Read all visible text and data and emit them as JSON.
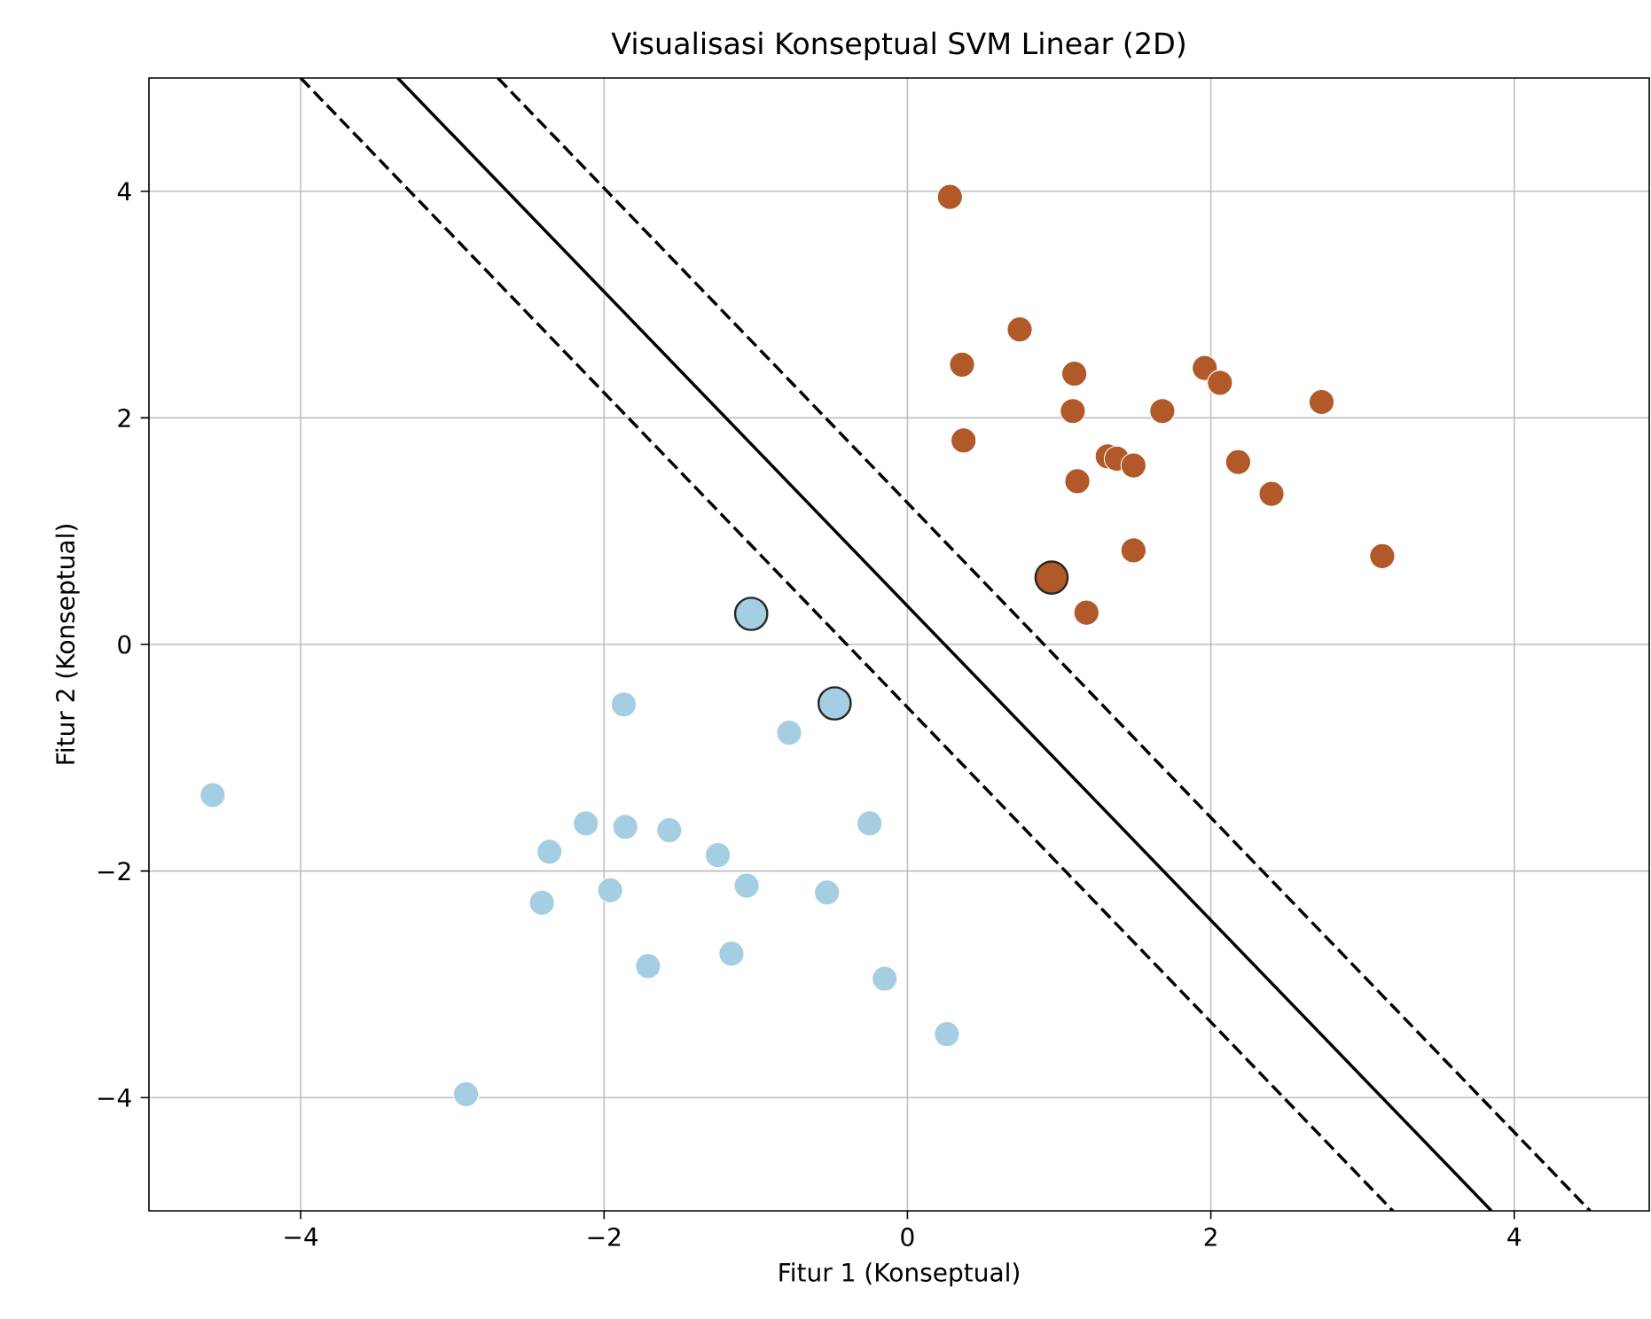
{
  "chart_data": {
    "type": "scatter",
    "title": "Visualisasi Konseptual SVM Linear (2D)",
    "xlabel": "Fitur 1 (Konseptual)",
    "ylabel": "Fitur 2 (Konseptual)",
    "xlim": [
      -5,
      4.89
    ],
    "ylim": [
      -5,
      5
    ],
    "xticks": [
      {
        "value": -4,
        "label": "−4"
      },
      {
        "value": -2,
        "label": "−2"
      },
      {
        "value": 0,
        "label": "0"
      },
      {
        "value": 2,
        "label": "2"
      },
      {
        "value": 4,
        "label": "4"
      }
    ],
    "yticks": [
      {
        "value": -4,
        "label": "−4"
      },
      {
        "value": -2,
        "label": "−2"
      },
      {
        "value": 0,
        "label": "0"
      },
      {
        "value": 2,
        "label": "2"
      },
      {
        "value": 4,
        "label": "4"
      }
    ],
    "grid": true,
    "legend": false,
    "marker": "circle",
    "series": [
      {
        "color": "#a6cee3",
        "x": [
          -4.58,
          -2.91,
          -1.87,
          -0.78,
          -2.12,
          -2.36,
          -1.86,
          -1.57,
          -1.25,
          -0.25,
          -1.96,
          -1.06,
          -2.41,
          -0.53,
          -1.71,
          -1.16,
          -0.15,
          0.26
        ],
        "values": [
          -1.33,
          -3.97,
          -0.53,
          -0.78,
          -1.58,
          -1.83,
          -1.61,
          -1.64,
          -1.86,
          -1.58,
          -2.17,
          -2.13,
          -2.28,
          -2.19,
          -2.84,
          -2.73,
          -2.95,
          -3.44
        ]
      },
      {
        "color": "#b15928",
        "x": [
          0.28,
          0.74,
          0.36,
          1.1,
          1.09,
          0.37,
          1.68,
          1.96,
          2.06,
          2.73,
          1.32,
          1.38,
          1.49,
          1.12,
          2.18,
          2.4,
          1.49,
          3.13,
          1.18
        ],
        "values": [
          3.95,
          2.78,
          2.47,
          2.39,
          2.06,
          1.8,
          2.06,
          2.44,
          2.31,
          2.14,
          1.66,
          1.64,
          1.58,
          1.44,
          1.61,
          1.33,
          0.83,
          0.78,
          0.28
        ]
      },
      {
        "colors": [
          "#a6cee3",
          "#a6cee3",
          "#b15928"
        ],
        "x": [
          -1.03,
          -0.48,
          0.95
        ],
        "values": [
          0.27,
          -0.52,
          0.59
        ]
      },
      {
        "type": "line",
        "color": "#000000",
        "line_style": "solid",
        "marker": "none",
        "x": [
          -3.36,
          3.85
        ],
        "values": [
          5,
          -5
        ]
      },
      {
        "type": "line",
        "color": "#000000",
        "line_style": "dashed",
        "marker": "none",
        "x": [
          -2.7,
          4.5
        ],
        "values": [
          5,
          -5
        ]
      },
      {
        "type": "line",
        "color": "#000000",
        "line_style": "dashed",
        "marker": "none",
        "x": [
          -4.0,
          3.2
        ],
        "values": [
          5,
          -5
        ]
      }
    ]
  }
}
